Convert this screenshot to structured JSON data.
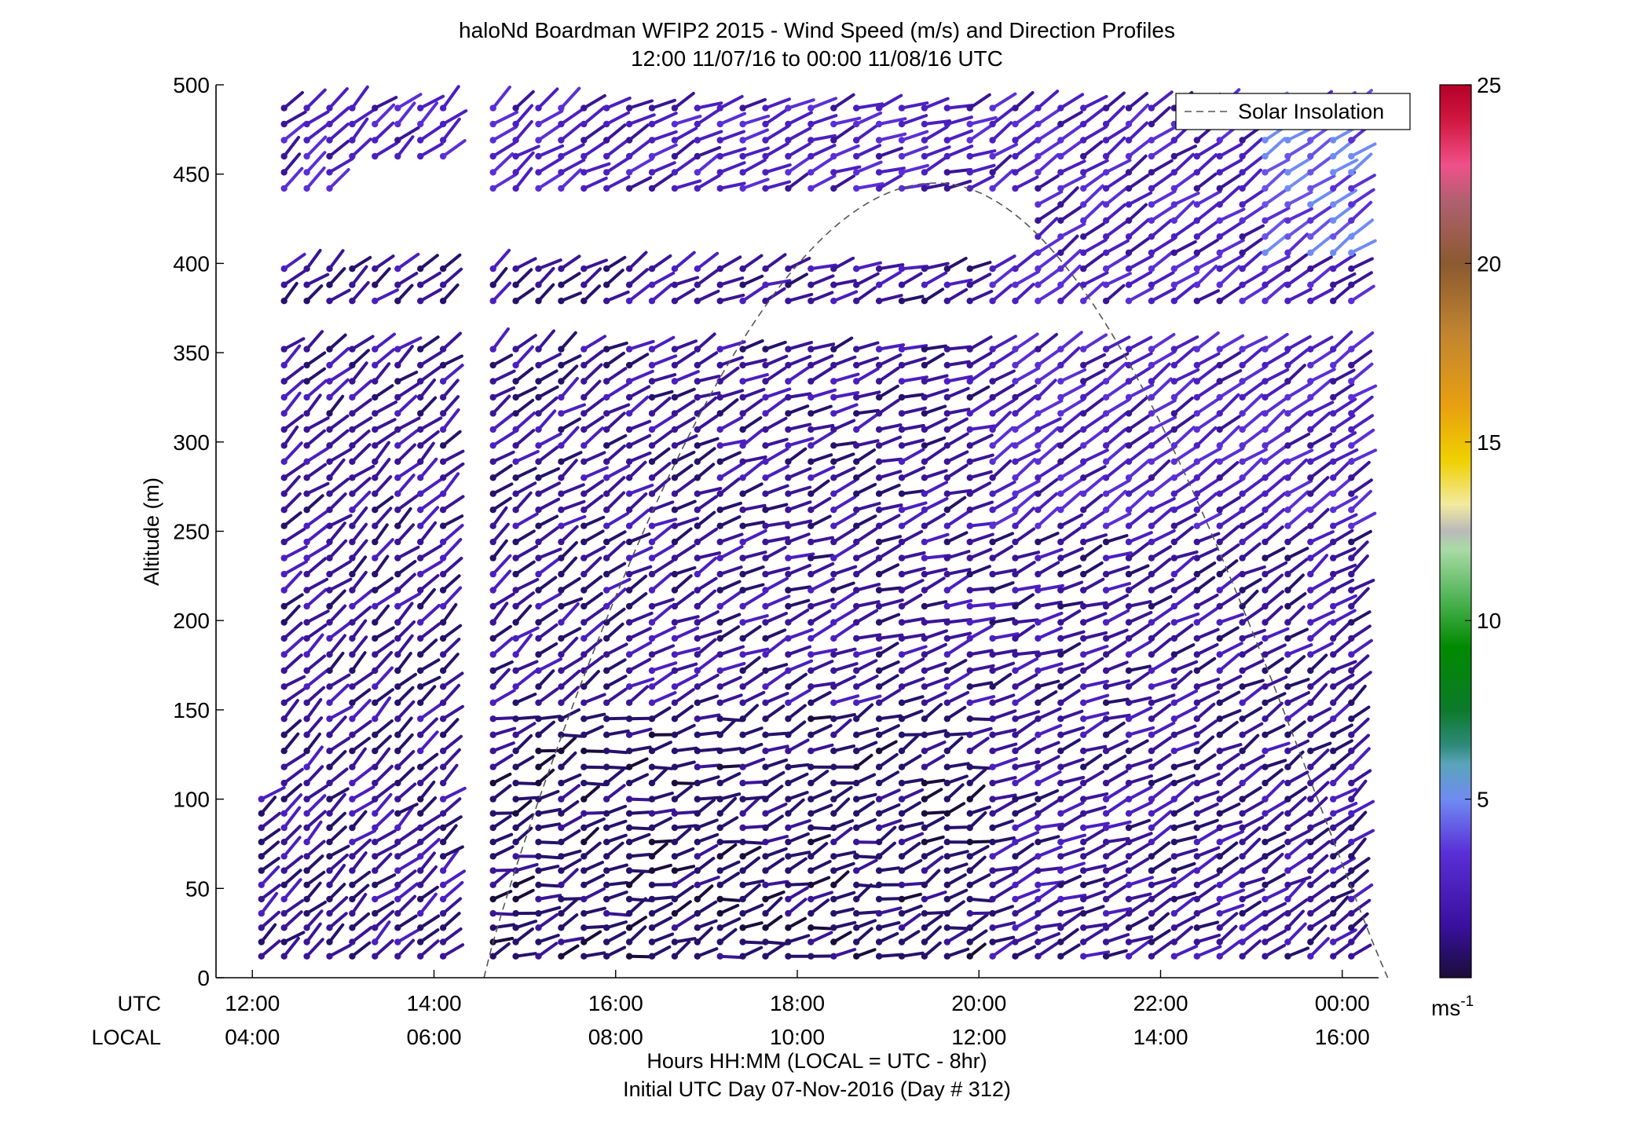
{
  "chart_data": {
    "type": "wind-barb-profile",
    "title_line1": "haloNd Boardman WFIP2 2015 - Wind Speed (m/s) and Direction Profiles",
    "title_line2": "12:00 11/07/16 to 00:00 11/08/16  UTC",
    "ylabel": "Altitude (m)",
    "xlabel_line1": "Hours HH:MM  (LOCAL = UTC - 8hr)",
    "xlabel_line2": "Initial UTC Day 07-Nov-2016 (Day # 312)",
    "utc_row_label": "UTC",
    "local_row_label": "LOCAL",
    "x_utc_ticks": [
      "12:00",
      "14:00",
      "16:00",
      "18:00",
      "20:00",
      "22:00",
      "00:00"
    ],
    "x_local_ticks": [
      "04:00",
      "06:00",
      "08:00",
      "10:00",
      "12:00",
      "14:00",
      "16:00"
    ],
    "x_tick_hours": [
      12,
      14,
      16,
      18,
      20,
      22,
      24
    ],
    "xlim_hours": [
      11.6,
      24.4
    ],
    "y_ticks": [
      0,
      50,
      100,
      150,
      200,
      250,
      300,
      350,
      400,
      450,
      500
    ],
    "ylim": [
      0,
      500
    ],
    "legend": {
      "label": "Solar Insolation",
      "placement": "top-right"
    },
    "solar_insolation": {
      "start_hour": 14.55,
      "peak_hour": 19.7,
      "end_hour": 24.5,
      "peak_altitude_equiv": 445
    },
    "colorbar": {
      "label": "ms",
      "label_exponent": "-1",
      "ticks": [
        5,
        10,
        15,
        20,
        25
      ],
      "range": [
        0,
        25
      ]
    },
    "profile_times_hours": [
      12.1,
      12.35,
      12.6,
      12.85,
      13.1,
      13.35,
      13.6,
      13.85,
      14.1,
      14.65,
      14.9,
      15.15,
      15.4,
      15.65,
      15.9,
      16.15,
      16.4,
      16.65,
      16.9,
      17.15,
      17.4,
      17.65,
      17.9,
      18.15,
      18.4,
      18.65,
      18.9,
      19.15,
      19.4,
      19.65,
      19.9,
      20.15,
      20.4,
      20.65,
      20.9,
      21.15,
      21.4,
      21.65,
      21.9,
      22.15,
      22.4,
      22.65,
      22.9,
      23.15,
      23.4,
      23.65,
      23.9,
      24.1
    ],
    "wind_speed_summary": {
      "typical_speed_ms": "1-4",
      "max_observed_speed_ms": 7,
      "dominant_direction": "southwesterly"
    }
  }
}
